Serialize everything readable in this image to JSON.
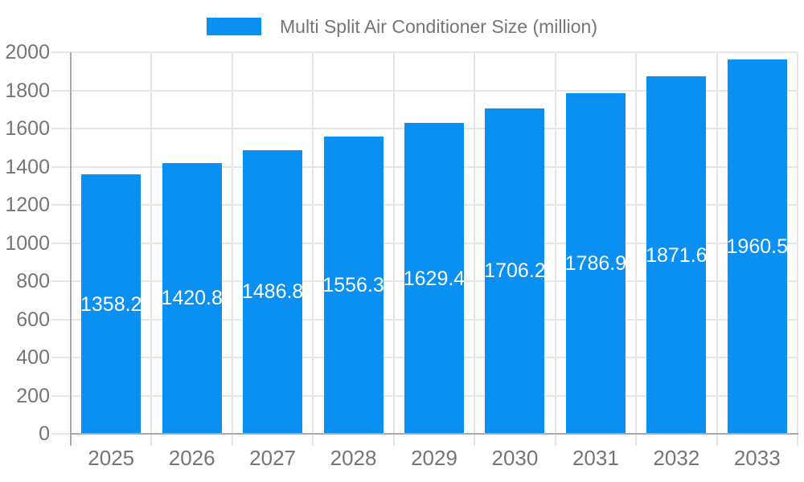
{
  "legend": {
    "label": "Multi Split Air Conditioner Size (million)"
  },
  "chart_data": {
    "type": "bar",
    "title": "Multi Split Air Conditioner Size (million)",
    "categories": [
      "2025",
      "2026",
      "2027",
      "2028",
      "2029",
      "2030",
      "2031",
      "2032",
      "2033"
    ],
    "values": [
      1358.2,
      1420.8,
      1486.8,
      1556.3,
      1629.4,
      1706.2,
      1786.9,
      1871.6,
      1960.5
    ],
    "value_labels": [
      "1358.2",
      "1420.8",
      "1486.8",
      "1556.3",
      "1629.4",
      "1706.2",
      "1786.9",
      "1871.6",
      "1960.5"
    ],
    "xlabel": "",
    "ylabel": "",
    "ylim": [
      0,
      2000
    ],
    "yticks": [
      0,
      200,
      400,
      600,
      800,
      1000,
      1200,
      1400,
      1600,
      1800,
      2000
    ],
    "grid": true,
    "legend_position": "top-center",
    "value_label_position": "inside-center",
    "colors": {
      "bar": "#0a8ff2",
      "bar_value_text": "#ffffff",
      "axis_text": "#757575",
      "legend_text": "#757575",
      "grid_line": "#e6e6e6",
      "axis_line": "#aaaaaa",
      "background": "#ffffff"
    }
  }
}
